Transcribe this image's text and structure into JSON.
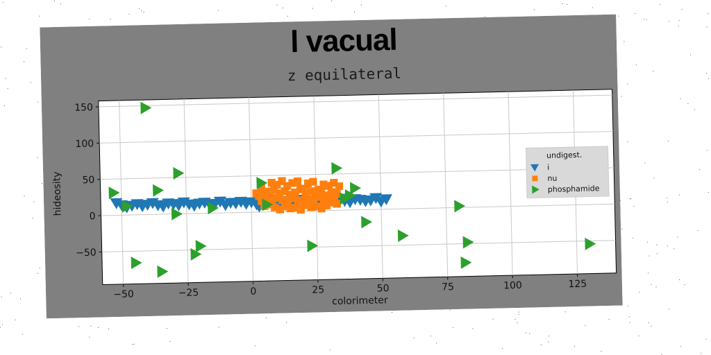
{
  "chart_data": {
    "type": "scatter",
    "title": "l vacual",
    "subtitle": "z equilateral",
    "xlabel": "colorimeter",
    "ylabel": "hideosity",
    "xlim": [
      -58,
      140
    ],
    "ylim": [
      -95,
      158
    ],
    "xticks": [
      -50,
      -25,
      0,
      25,
      50,
      75,
      100,
      125
    ],
    "yticks": [
      -50,
      0,
      50,
      100,
      150
    ],
    "xtick_labels": [
      "−50",
      "−25",
      "0",
      "25",
      "50",
      "75",
      "100",
      "125"
    ],
    "ytick_labels": [
      "−50",
      "0",
      "50",
      "100",
      "150"
    ],
    "grid": true,
    "legend": {
      "title": "undigest.",
      "placement": "right"
    },
    "series": [
      {
        "name": "i",
        "marker": "triangle-down",
        "color": "#1f77b4",
        "x": [
          -52,
          -50,
          -48,
          -46,
          -44,
          -42,
          -40,
          -38,
          -36,
          -34,
          -32,
          -30,
          -28,
          -26,
          -24,
          -22,
          -20,
          -18,
          -16,
          -14,
          -12,
          -10,
          -8,
          -6,
          -4,
          -2,
          0,
          2,
          4,
          6,
          8,
          10,
          12,
          14,
          16,
          18,
          20,
          22,
          24,
          26,
          28,
          30,
          32,
          34,
          36,
          38,
          40,
          42,
          44,
          46,
          48,
          50,
          52,
          9,
          12,
          3
        ],
        "y": [
          17,
          14,
          11,
          13,
          15,
          12,
          14,
          16,
          13,
          11,
          15,
          14,
          12,
          16,
          13,
          11,
          14,
          15,
          12,
          13,
          16,
          11,
          14,
          13,
          15,
          12,
          14,
          11,
          13,
          16,
          12,
          14,
          15,
          11,
          13,
          16,
          12,
          14,
          13,
          15,
          11,
          14,
          12,
          16,
          13,
          11,
          15,
          14,
          12,
          13,
          16,
          11,
          14,
          10,
          9,
          8
        ]
      },
      {
        "name": "nu",
        "marker": "square",
        "color": "#ff7f0e",
        "x": [
          2,
          4,
          6,
          8,
          10,
          12,
          14,
          16,
          18,
          20,
          22,
          24,
          26,
          28,
          30,
          32,
          34,
          3,
          5,
          7,
          9,
          11,
          13,
          15,
          17,
          19,
          21,
          23,
          25,
          27,
          29,
          31,
          33,
          4,
          6,
          8,
          10,
          12,
          14,
          16,
          18,
          20,
          22,
          24,
          26,
          28,
          30,
          32,
          5,
          9,
          13,
          17,
          21,
          25,
          29,
          33,
          11,
          15,
          19,
          23,
          27,
          7,
          31
        ],
        "y": [
          26,
          33,
          28,
          40,
          37,
          42,
          35,
          39,
          41,
          30,
          38,
          40,
          29,
          36,
          34,
          38,
          33,
          22,
          27,
          21,
          30,
          25,
          28,
          23,
          26,
          31,
          22,
          27,
          24,
          26,
          21,
          25,
          23,
          15,
          17,
          14,
          19,
          16,
          13,
          18,
          15,
          11,
          16,
          14,
          19,
          12,
          17,
          13,
          8,
          6,
          7,
          5,
          8,
          6,
          7,
          9,
          3,
          4,
          2,
          5,
          3,
          10,
          11
        ]
      },
      {
        "name": "phosphamide",
        "marker": "triangle-right",
        "color": "#2ca02c",
        "x": [
          -40,
          -53,
          -48,
          -36,
          -28,
          -29,
          -15,
          -20,
          -22,
          -45,
          -35,
          4,
          6,
          23,
          33,
          36,
          40,
          44,
          38,
          58,
          80,
          83,
          82,
          130
        ],
        "y": [
          147,
          31,
          12,
          33,
          56,
          0,
          7,
          -45,
          -56,
          -66,
          -79,
          40,
          10,
          -48,
          58,
          16,
          30,
          -17,
          20,
          -37,
          2,
          -48,
          -76,
          -54
        ]
      }
    ]
  }
}
